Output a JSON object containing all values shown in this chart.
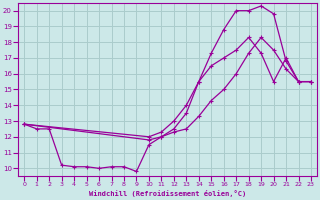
{
  "xlabel": "Windchill (Refroidissement éolien,°C)",
  "bg_color": "#cce8e8",
  "grid_color": "#aacccc",
  "line_color": "#990099",
  "xlim": [
    -0.5,
    23.5
  ],
  "ylim": [
    9.5,
    20.5
  ],
  "xticks": [
    0,
    1,
    2,
    3,
    4,
    5,
    6,
    7,
    8,
    9,
    10,
    11,
    12,
    13,
    14,
    15,
    16,
    17,
    18,
    19,
    20,
    21,
    22,
    23
  ],
  "yticks": [
    10,
    11,
    12,
    13,
    14,
    15,
    16,
    17,
    18,
    19,
    20
  ],
  "line1_x": [
    0,
    1,
    2,
    3,
    4,
    5,
    6,
    7,
    8,
    9,
    10,
    11,
    12,
    13,
    14,
    15,
    16,
    17,
    18,
    19,
    20,
    21,
    22,
    23
  ],
  "line1_y": [
    12.8,
    12.5,
    12.5,
    10.2,
    10.1,
    10.1,
    10.0,
    10.1,
    10.1,
    9.8,
    11.5,
    12.0,
    12.5,
    13.5,
    15.5,
    16.5,
    17.0,
    17.5,
    18.3,
    17.3,
    15.5,
    17.0,
    15.5,
    15.5
  ],
  "line2_x": [
    0,
    10,
    11,
    12,
    13,
    14,
    15,
    16,
    17,
    18,
    19,
    20,
    21,
    22,
    23
  ],
  "line2_y": [
    12.8,
    12.0,
    12.3,
    13.0,
    14.0,
    15.5,
    17.3,
    18.8,
    20.0,
    20.0,
    20.3,
    19.8,
    16.8,
    15.5,
    15.5
  ],
  "line3_x": [
    0,
    10,
    11,
    12,
    13,
    14,
    15,
    16,
    17,
    18,
    19,
    20,
    21,
    22,
    23
  ],
  "line3_y": [
    12.8,
    11.8,
    12.0,
    12.3,
    12.5,
    13.3,
    14.3,
    15.0,
    16.0,
    17.3,
    18.3,
    17.5,
    16.3,
    15.5,
    15.5
  ]
}
